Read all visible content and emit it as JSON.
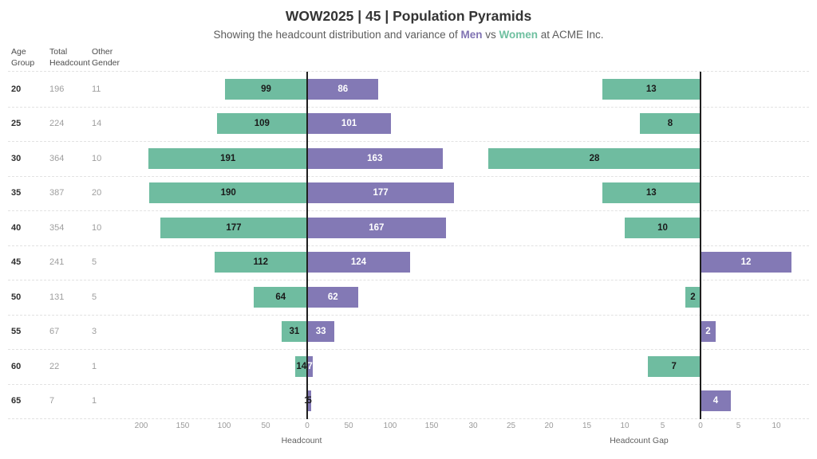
{
  "title": "WOW2025 | 45 | Population Pyramids",
  "subtitle": {
    "part1": "Showing the headcount distribution and variance of ",
    "men": "Men",
    "part2": " vs ",
    "women": "Women",
    "part3": " at ACME Inc."
  },
  "colors": {
    "women_green": "#6fbca0",
    "men_purple": "#8379b5",
    "bar_label_dark": "#1a1a1a",
    "bar_label_light": "#ffffff",
    "zero_line": "#1f1f1f"
  },
  "chart_data": {
    "type": "bar",
    "subtype": "population-pyramid-with-gap",
    "company": "ACME Inc.",
    "categories": [
      "20",
      "25",
      "30",
      "35",
      "40",
      "45",
      "50",
      "55",
      "60",
      "65"
    ],
    "series": [
      {
        "name": "Women",
        "color": "#6fbca0",
        "values": [
          99,
          109,
          191,
          190,
          177,
          112,
          64,
          31,
          14,
          1
        ]
      },
      {
        "name": "Men",
        "color": "#8379b5",
        "values": [
          86,
          101,
          163,
          177,
          167,
          124,
          62,
          33,
          7,
          5
        ]
      },
      {
        "name": "Headcount Gap (positive = more Women, negative = more Men)",
        "values": [
          13,
          8,
          28,
          13,
          10,
          -12,
          2,
          -2,
          7,
          -4
        ]
      }
    ],
    "table_columns": [
      {
        "header": "Age\nGroup",
        "values": [
          "20",
          "25",
          "30",
          "35",
          "40",
          "45",
          "50",
          "55",
          "60",
          "65"
        ]
      },
      {
        "header": "Total\nHeadcount",
        "values": [
          196,
          224,
          364,
          387,
          354,
          241,
          131,
          67,
          22,
          7
        ]
      },
      {
        "header": "Other\nGender",
        "values": [
          11,
          14,
          10,
          20,
          10,
          5,
          5,
          3,
          1,
          1
        ]
      }
    ],
    "axes": {
      "pyramid": {
        "label": "Headcount",
        "tick_labels": [
          "200",
          "150",
          "100",
          "50",
          "0",
          "50",
          "100",
          "150"
        ],
        "range_note": "mirrored axis, 0 at center"
      },
      "gap": {
        "label": "Headcount Gap",
        "tick_labels": [
          "30",
          "25",
          "20",
          "15",
          "10",
          "5",
          "0",
          "5",
          "10"
        ],
        "range_note": "mirrored axis, 0 near right"
      }
    },
    "grid": "horizontal row separators only",
    "legend": "none (series colors referenced by subtitle words Men/Women)"
  }
}
